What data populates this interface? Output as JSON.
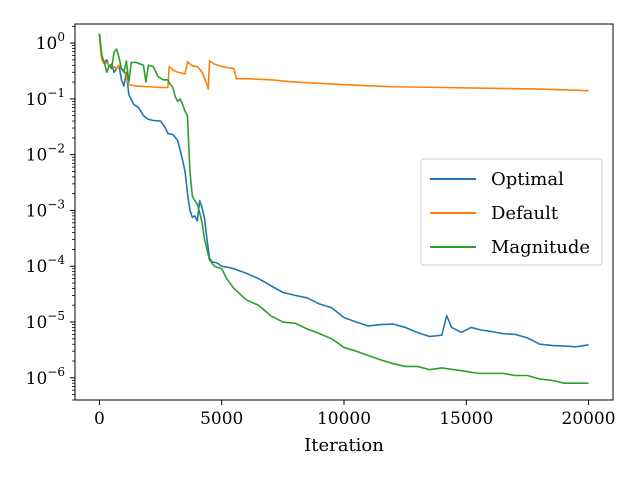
{
  "chart_data": {
    "type": "line",
    "title": "",
    "xlabel": "Iteration",
    "ylabel": "",
    "xlim": [
      -1000,
      21000
    ],
    "ylim": [
      4e-07,
      2.2
    ],
    "yscale": "log",
    "grid": false,
    "legend": "center-right",
    "x_ticks": [
      {
        "value": 0,
        "label": "0"
      },
      {
        "value": 5000,
        "label": "5000"
      },
      {
        "value": 10000,
        "label": "10000"
      },
      {
        "value": 15000,
        "label": "15000"
      },
      {
        "value": 20000,
        "label": "20000"
      }
    ],
    "y_ticks": [
      {
        "value": 1,
        "mant": "10",
        "exp": "0"
      },
      {
        "value": 0.1,
        "mant": "10",
        "exp": "−1"
      },
      {
        "value": 0.01,
        "mant": "10",
        "exp": "−2"
      },
      {
        "value": 0.001,
        "mant": "10",
        "exp": "−3"
      },
      {
        "value": 0.0001,
        "mant": "10",
        "exp": "−4"
      },
      {
        "value": 1e-05,
        "mant": "10",
        "exp": "−5"
      },
      {
        "value": 1e-06,
        "mant": "10",
        "exp": "−6"
      }
    ],
    "series": [
      {
        "name": "Optimal",
        "color": "#1f77b4",
        "points": [
          [
            0,
            1.4
          ],
          [
            100,
            0.5
          ],
          [
            200,
            0.45
          ],
          [
            300,
            0.5
          ],
          [
            400,
            0.38
          ],
          [
            500,
            0.42
          ],
          [
            600,
            0.3
          ],
          [
            700,
            0.35
          ],
          [
            800,
            0.4
          ],
          [
            900,
            0.22
          ],
          [
            1000,
            0.17
          ],
          [
            1100,
            0.3
          ],
          [
            1200,
            0.12
          ],
          [
            1400,
            0.08
          ],
          [
            1600,
            0.07
          ],
          [
            1800,
            0.05
          ],
          [
            2000,
            0.043
          ],
          [
            2200,
            0.041
          ],
          [
            2500,
            0.04
          ],
          [
            2700,
            0.03
          ],
          [
            2800,
            0.024
          ],
          [
            3000,
            0.023
          ],
          [
            3200,
            0.018
          ],
          [
            3300,
            0.012
          ],
          [
            3400,
            0.008
          ],
          [
            3500,
            0.005
          ],
          [
            3600,
            0.002
          ],
          [
            3700,
            0.001
          ],
          [
            3800,
            0.00075
          ],
          [
            3900,
            0.0008
          ],
          [
            4000,
            0.00065
          ],
          [
            4100,
            0.0015
          ],
          [
            4200,
            0.0011
          ],
          [
            4300,
            0.0007
          ],
          [
            4400,
            0.0003
          ],
          [
            4500,
            0.00014
          ],
          [
            4600,
            0.00012
          ],
          [
            4800,
            0.000115
          ],
          [
            5000,
            0.0001
          ],
          [
            5300,
            9.5e-05
          ],
          [
            5500,
            9e-05
          ],
          [
            6000,
            7.5e-05
          ],
          [
            6500,
            6e-05
          ],
          [
            7000,
            4.5e-05
          ],
          [
            7500,
            3.4e-05
          ],
          [
            8000,
            3e-05
          ],
          [
            8500,
            2.7e-05
          ],
          [
            9000,
            2.1e-05
          ],
          [
            9500,
            1.8e-05
          ],
          [
            10000,
            1.2e-05
          ],
          [
            10500,
            1e-05
          ],
          [
            11000,
            8.5e-06
          ],
          [
            11500,
            9e-06
          ],
          [
            12000,
            9.2e-06
          ],
          [
            12500,
            8e-06
          ],
          [
            13000,
            6.5e-06
          ],
          [
            13500,
            5.5e-06
          ],
          [
            14000,
            5.8e-06
          ],
          [
            14200,
            1.3e-05
          ],
          [
            14400,
            8e-06
          ],
          [
            14800,
            6.5e-06
          ],
          [
            15200,
            8e-06
          ],
          [
            15600,
            7.2e-06
          ],
          [
            16000,
            6.8e-06
          ],
          [
            16500,
            6.2e-06
          ],
          [
            17000,
            6e-06
          ],
          [
            17500,
            5.2e-06
          ],
          [
            18000,
            4e-06
          ],
          [
            18500,
            3.8e-06
          ],
          [
            19000,
            3.7e-06
          ],
          [
            19500,
            3.6e-06
          ],
          [
            20000,
            3.9e-06
          ]
        ]
      },
      {
        "name": "Default",
        "color": "#ff7f0e",
        "points": [
          [
            0,
            1.2
          ],
          [
            100,
            0.5
          ],
          [
            200,
            0.42
          ],
          [
            300,
            0.45
          ],
          [
            400,
            0.4
          ],
          [
            500,
            0.35
          ],
          [
            600,
            0.38
          ],
          [
            700,
            0.34
          ],
          [
            800,
            0.4
          ],
          [
            900,
            0.35
          ],
          [
            1000,
            0.32
          ],
          [
            1100,
            0.25
          ],
          [
            1200,
            0.18
          ],
          [
            1500,
            0.17
          ],
          [
            2000,
            0.165
          ],
          [
            2500,
            0.16
          ],
          [
            2800,
            0.16
          ],
          [
            2850,
            0.38
          ],
          [
            3000,
            0.33
          ],
          [
            3200,
            0.3
          ],
          [
            3500,
            0.28
          ],
          [
            3600,
            0.46
          ],
          [
            3800,
            0.39
          ],
          [
            4000,
            0.38
          ],
          [
            4200,
            0.3
          ],
          [
            4400,
            0.18
          ],
          [
            4450,
            0.15
          ],
          [
            4500,
            0.48
          ],
          [
            4700,
            0.42
          ],
          [
            5000,
            0.38
          ],
          [
            5300,
            0.36
          ],
          [
            5500,
            0.35
          ],
          [
            5600,
            0.23
          ],
          [
            6000,
            0.23
          ],
          [
            7000,
            0.22
          ],
          [
            8000,
            0.2
          ],
          [
            9000,
            0.19
          ],
          [
            10000,
            0.18
          ],
          [
            12000,
            0.165
          ],
          [
            14000,
            0.16
          ],
          [
            16000,
            0.155
          ],
          [
            18000,
            0.15
          ],
          [
            20000,
            0.14
          ]
        ]
      },
      {
        "name": "Magnitude",
        "color": "#2ca02c",
        "points": [
          [
            0,
            1.5
          ],
          [
            100,
            0.6
          ],
          [
            200,
            0.45
          ],
          [
            300,
            0.3
          ],
          [
            400,
            0.4
          ],
          [
            500,
            0.35
          ],
          [
            600,
            0.7
          ],
          [
            700,
            0.78
          ],
          [
            800,
            0.55
          ],
          [
            900,
            0.35
          ],
          [
            1000,
            0.3
          ],
          [
            1100,
            0.48
          ],
          [
            1200,
            0.2
          ],
          [
            1300,
            0.45
          ],
          [
            1500,
            0.45
          ],
          [
            1800,
            0.4
          ],
          [
            1900,
            0.2
          ],
          [
            2000,
            0.4
          ],
          [
            2200,
            0.38
          ],
          [
            2400,
            0.25
          ],
          [
            2600,
            0.22
          ],
          [
            2800,
            0.22
          ],
          [
            2900,
            0.18
          ],
          [
            3000,
            0.16
          ],
          [
            3100,
            0.11
          ],
          [
            3200,
            0.09
          ],
          [
            3300,
            0.1
          ],
          [
            3400,
            0.08
          ],
          [
            3500,
            0.06
          ],
          [
            3600,
            0.05
          ],
          [
            3700,
            0.005
          ],
          [
            3800,
            0.0018
          ],
          [
            3900,
            0.0015
          ],
          [
            4000,
            0.0013
          ],
          [
            4100,
            0.0009
          ],
          [
            4200,
            0.0006
          ],
          [
            4300,
            0.0003
          ],
          [
            4400,
            0.0002
          ],
          [
            4500,
            0.00013
          ],
          [
            4700,
            0.0001
          ],
          [
            5000,
            9e-05
          ],
          [
            5200,
            6e-05
          ],
          [
            5500,
            4e-05
          ],
          [
            6000,
            2.5e-05
          ],
          [
            6500,
            2e-05
          ],
          [
            7000,
            1.3e-05
          ],
          [
            7500,
            1e-05
          ],
          [
            8000,
            9.5e-06
          ],
          [
            8500,
            7.5e-06
          ],
          [
            9000,
            6.2e-06
          ],
          [
            9500,
            5e-06
          ],
          [
            10000,
            3.5e-06
          ],
          [
            10500,
            3e-06
          ],
          [
            11000,
            2.5e-06
          ],
          [
            11500,
            2.1e-06
          ],
          [
            12000,
            1.8e-06
          ],
          [
            12500,
            1.6e-06
          ],
          [
            13000,
            1.6e-06
          ],
          [
            13500,
            1.4e-06
          ],
          [
            14000,
            1.5e-06
          ],
          [
            14500,
            1.4e-06
          ],
          [
            15000,
            1.3e-06
          ],
          [
            15500,
            1.2e-06
          ],
          [
            16000,
            1.2e-06
          ],
          [
            16500,
            1.2e-06
          ],
          [
            17000,
            1.1e-06
          ],
          [
            17500,
            1.1e-06
          ],
          [
            18000,
            9.5e-07
          ],
          [
            18500,
            9e-07
          ],
          [
            19000,
            8e-07
          ],
          [
            19500,
            8e-07
          ],
          [
            20000,
            8e-07
          ]
        ]
      }
    ]
  }
}
